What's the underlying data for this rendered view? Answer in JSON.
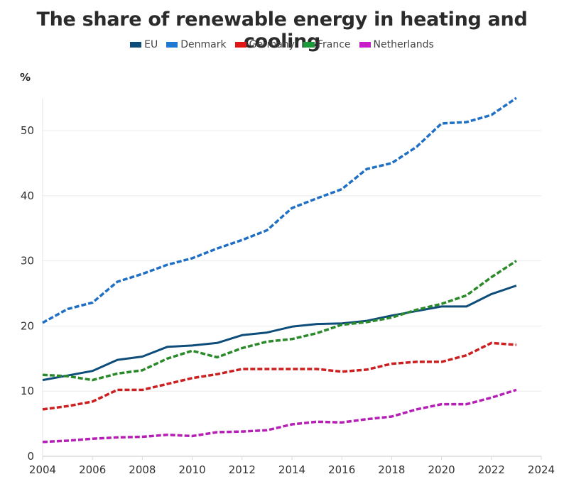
{
  "chart_data": {
    "type": "line",
    "title": "The share of renewable energy in heating and cooling",
    "ylabel": "%",
    "xlabel": "",
    "xlim": [
      2004,
      2024
    ],
    "ylim": [
      0,
      55
    ],
    "x_ticks": [
      "2004",
      "2006",
      "2008",
      "2010",
      "2012",
      "2014",
      "2016",
      "2018",
      "2020",
      "2022",
      "2024"
    ],
    "y_ticks": [
      "0",
      "10",
      "20",
      "30",
      "40",
      "50"
    ],
    "grid": "horizontal",
    "legend_position": "top-center",
    "x": [
      2004,
      2005,
      2006,
      2007,
      2008,
      2009,
      2010,
      2011,
      2012,
      2013,
      2014,
      2015,
      2016,
      2017,
      2018,
      2019,
      2020,
      2021,
      2022,
      2023
    ],
    "series": [
      {
        "name": "EU",
        "color": "#0e4d7a",
        "style": "solid",
        "values": [
          11.7,
          12.4,
          13.1,
          14.8,
          15.3,
          16.8,
          17.0,
          17.4,
          18.6,
          19.0,
          19.9,
          20.3,
          20.4,
          20.8,
          21.6,
          22.3,
          23.0,
          23.0,
          24.9,
          26.2
        ]
      },
      {
        "name": "Denmark",
        "color": "#1f6fc5",
        "style": "dashed",
        "values": [
          20.5,
          22.6,
          23.6,
          26.8,
          28.0,
          29.4,
          30.4,
          31.9,
          33.2,
          34.7,
          38.1,
          39.6,
          41.0,
          44.1,
          45.0,
          47.5,
          51.1,
          51.3,
          52.4,
          55.0
        ]
      },
      {
        "name": "Germany",
        "color": "#cc1f1f",
        "style": "dashed",
        "values": [
          7.2,
          7.7,
          8.4,
          10.2,
          10.2,
          11.1,
          12.0,
          12.6,
          13.4,
          13.4,
          13.4,
          13.4,
          13.0,
          13.3,
          14.2,
          14.5,
          14.5,
          15.5,
          17.4,
          17.1
        ]
      },
      {
        "name": "France",
        "color": "#2a8a2a",
        "style": "dashed",
        "values": [
          12.5,
          12.3,
          11.7,
          12.7,
          13.2,
          15.0,
          16.2,
          15.2,
          16.6,
          17.6,
          18.0,
          18.9,
          20.2,
          20.6,
          21.3,
          22.5,
          23.4,
          24.7,
          27.5,
          30.0
        ]
      },
      {
        "name": "Netherlands",
        "color": "#b51fb5",
        "style": "dashed",
        "values": [
          2.2,
          2.4,
          2.7,
          2.9,
          3.0,
          3.3,
          3.1,
          3.7,
          3.8,
          4.0,
          4.9,
          5.3,
          5.2,
          5.7,
          6.1,
          7.2,
          8.0,
          8.0,
          9.0,
          10.2
        ]
      }
    ]
  },
  "legend": {
    "items": [
      {
        "label": "EU",
        "color": "#0e4d7a"
      },
      {
        "label": "Denmark",
        "color": "#1f78d1"
      },
      {
        "label": "Germany",
        "color": "#e01616"
      },
      {
        "label": "France",
        "color": "#1a9a3a"
      },
      {
        "label": "Netherlands",
        "color": "#c81ec8"
      }
    ]
  }
}
